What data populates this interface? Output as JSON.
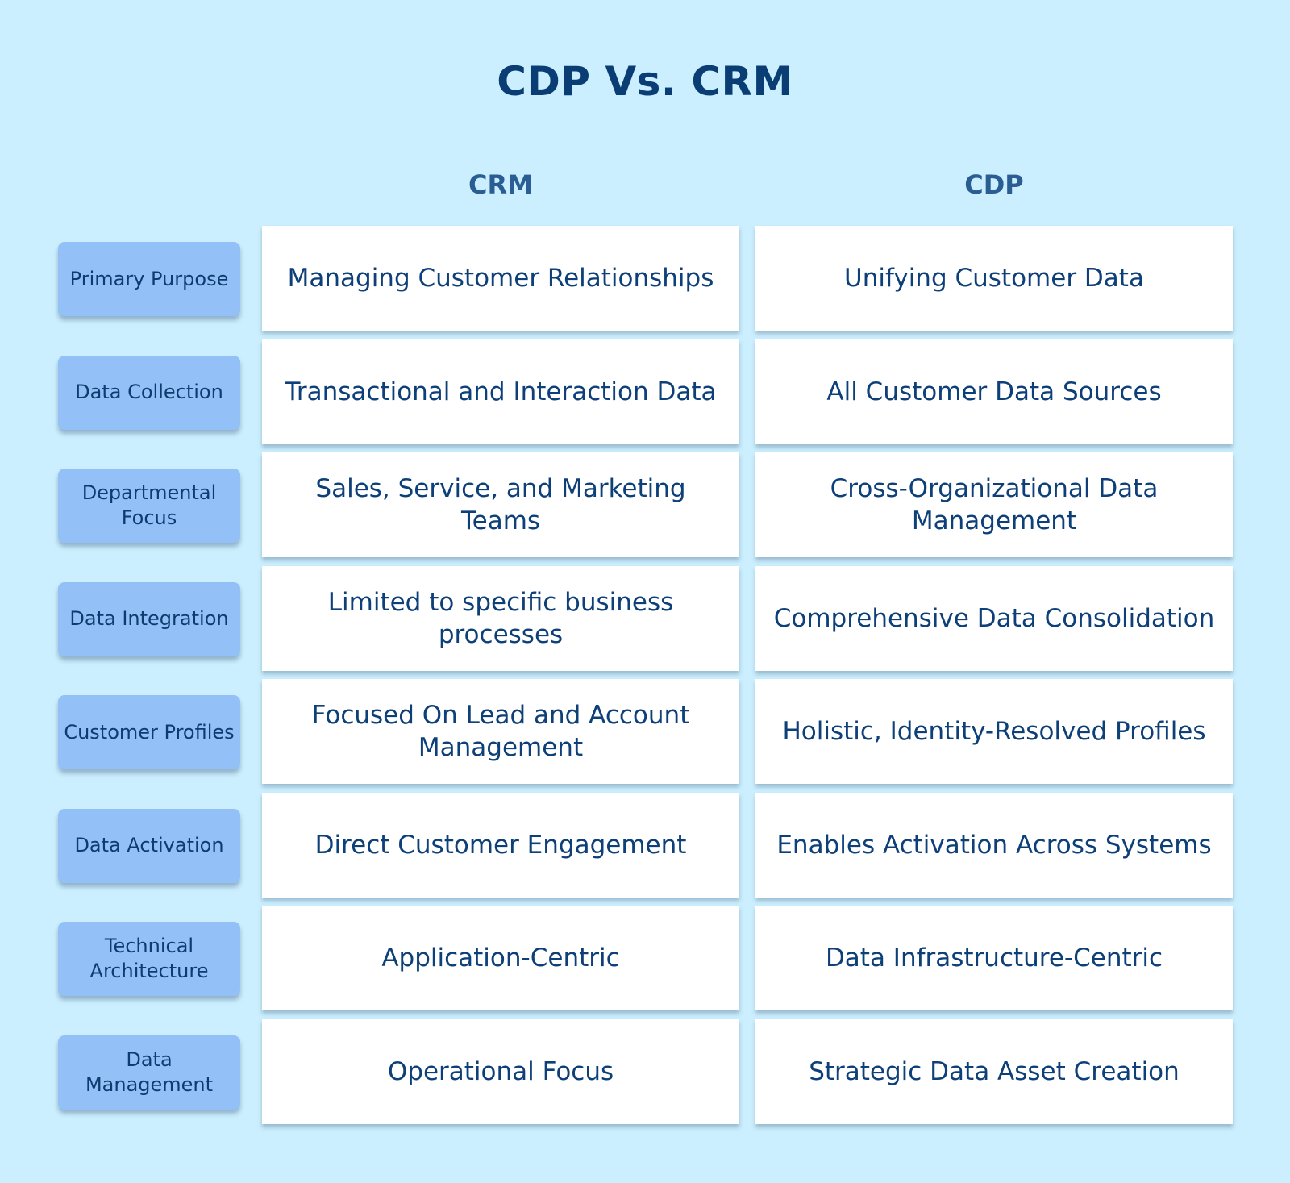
{
  "title": "CDP Vs. CRM",
  "columns": {
    "crm": "CRM",
    "cdp": "CDP"
  },
  "rows": [
    {
      "label": "Primary Purpose",
      "crm": "Managing Customer Relationships",
      "cdp": "Unifying Customer Data"
    },
    {
      "label": "Data Collection",
      "crm": "Transactional and Interaction Data",
      "cdp": "All Customer Data Sources"
    },
    {
      "label": "Departmental Focus",
      "crm": "Sales, Service, and Marketing Teams",
      "cdp": "Cross-Organizational Data Management"
    },
    {
      "label": "Data Integration",
      "crm": "Limited to specific business processes",
      "cdp": "Comprehensive Data Consolidation"
    },
    {
      "label": "Customer Profiles",
      "crm": "Focused On Lead and Account Management",
      "cdp": "Holistic, Identity-Resolved Profiles"
    },
    {
      "label": "Data Activation",
      "crm": "Direct Customer Engagement",
      "cdp": "Enables Activation Across Systems"
    },
    {
      "label": "Technical Architecture",
      "crm": "Application-Centric",
      "cdp": "Data Infrastructure-Centric"
    },
    {
      "label": "Data Management",
      "crm": "Operational Focus",
      "cdp": "Strategic Data Asset Creation"
    }
  ]
}
